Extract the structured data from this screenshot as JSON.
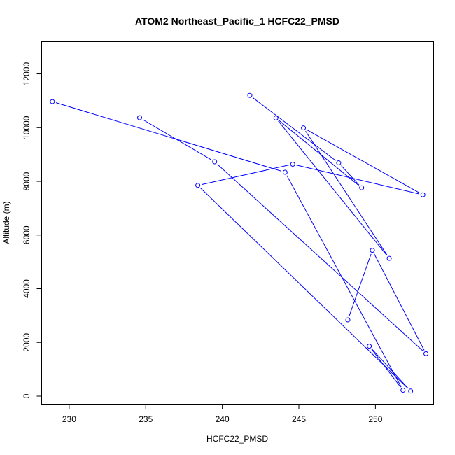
{
  "chart_data": {
    "type": "line",
    "title": "ATOM2 Northeast_Pacific_1 HCFC22_PMSD",
    "xlabel": "HCFC22_PMSD",
    "ylabel": "Altitude (m)",
    "xlim": [
      228.2,
      253.8
    ],
    "ylim": [
      -300,
      13200
    ],
    "x_ticks": [
      230,
      235,
      240,
      245,
      250
    ],
    "y_ticks": [
      0,
      2000,
      4000,
      6000,
      8000,
      10000,
      12000
    ],
    "series_color": "#0000ff",
    "series": [
      {
        "markers": "open-circle",
        "points": [
          {
            "x": 228.9,
            "y": 10970
          },
          {
            "x": 244.1,
            "y": 8340
          },
          {
            "x": 251.8,
            "y": 220
          },
          {
            "x": 249.6,
            "y": 1860
          },
          {
            "x": 252.3,
            "y": 190
          },
          {
            "x": 238.4,
            "y": 7850
          },
          {
            "x": 244.6,
            "y": 8640
          },
          {
            "x": 253.1,
            "y": 7500
          },
          {
            "x": 245.3,
            "y": 9990
          },
          {
            "x": 250.9,
            "y": 5130
          },
          {
            "x": 243.5,
            "y": 10360
          },
          {
            "x": 249.1,
            "y": 7760
          },
          {
            "x": 247.6,
            "y": 8690
          },
          {
            "x": 241.8,
            "y": 11200
          }
        ]
      },
      {
        "markers": "open-circle",
        "points": [
          {
            "x": 234.6,
            "y": 10370
          },
          {
            "x": 239.5,
            "y": 8730
          },
          {
            "x": 253.3,
            "y": 1580
          },
          {
            "x": 249.8,
            "y": 5430
          },
          {
            "x": 248.2,
            "y": 2840
          }
        ]
      }
    ],
    "grid": false,
    "legend": "none"
  }
}
